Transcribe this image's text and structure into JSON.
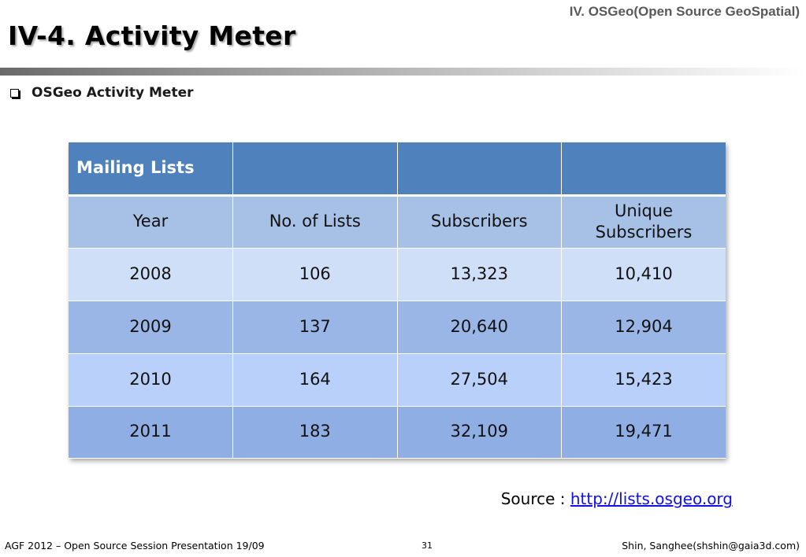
{
  "header": {
    "section": "IV. OSGeo(Open Source GeoSpatial)",
    "title": "IV-4. Activity Meter"
  },
  "bullet": "OSGeo Activity Meter",
  "table": {
    "caption": "Mailing  Lists",
    "columns": [
      "Year",
      "No. of Lists",
      "Subscribers",
      "Unique Subscribers"
    ],
    "rows": [
      [
        "2008",
        "106",
        "13,323",
        "10,410"
      ],
      [
        "2009",
        "137",
        "20,640",
        "12,904"
      ],
      [
        "2010",
        "164",
        "27,504",
        "15,423"
      ],
      [
        "2011",
        "183",
        "32,109",
        "19,471"
      ]
    ]
  },
  "source": {
    "label": "Source : ",
    "link_text": "http://lists.osgeo.org"
  },
  "footer": {
    "left": "AGF 2012 – Open Source Session Presentation 19/09",
    "page": "31",
    "right": "Shin, Sanghee(shshin@gaia3d.com)"
  }
}
